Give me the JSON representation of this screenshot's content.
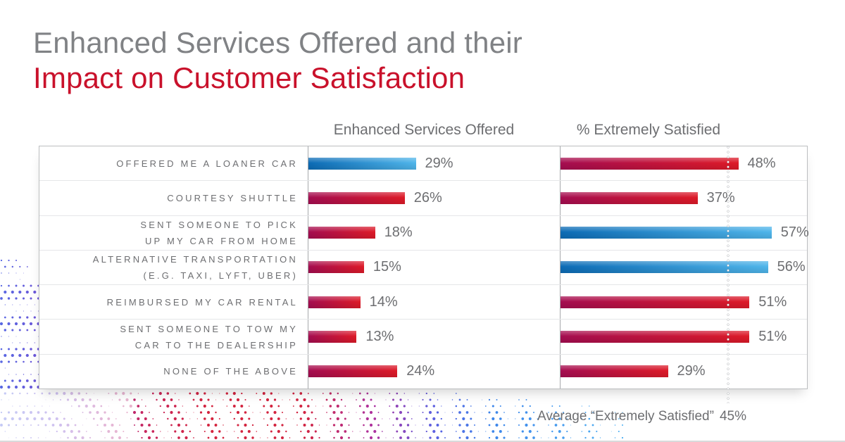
{
  "title": {
    "line1": "Enhanced Services Offered and their",
    "line2": "Impact on Customer Satisfaction"
  },
  "columns": {
    "services_header": "Enhanced Services Offered",
    "satisfied_header": "% Extremely Satisfied"
  },
  "footnote": {
    "label": "Average “Extremely Satisfied”",
    "value_display": "45%"
  },
  "chart_data": {
    "type": "bar",
    "orientation": "horizontal",
    "unit": "%",
    "title": "Enhanced Services Offered and their Impact on Customer Satisfaction",
    "categories": [
      "OFFERED ME A LOANER CAR",
      "COURTESY SHUTTLE",
      "SENT SOMEONE TO PICK UP MY CAR FROM HOME",
      "ALTERNATIVE TRANSPORTATION (E.G. TAXI, LYFT, UBER)",
      "REIMBURSED MY CAR RENTAL",
      "SENT SOMEONE TO TOW MY CAR TO THE DEALERSHIP",
      "NONE OF THE ABOVE"
    ],
    "series": [
      {
        "name": "Enhanced Services Offered",
        "values": [
          29,
          26,
          18,
          15,
          14,
          13,
          24
        ]
      },
      {
        "name": "% Extremely Satisfied",
        "values": [
          48,
          37,
          57,
          56,
          51,
          51,
          29
        ]
      }
    ],
    "average_line": {
      "series": "% Extremely Satisfied",
      "value": 45,
      "label": "Average “Extremely Satisfied” 45%"
    },
    "xlim": [
      0,
      66
    ],
    "grid": false,
    "legend": "column headers above each bar group",
    "palette": {
      "blue": {
        "start": "#0c6bb5",
        "end": "#4fb5ea"
      },
      "red": {
        "start": "#a50d50",
        "end": "#dd1a28"
      }
    },
    "rows": [
      {
        "label_lines": [
          "OFFERED ME A LOANER CAR"
        ],
        "services": {
          "value": 29,
          "display": "29%",
          "color": "blue"
        },
        "satisfied": {
          "value": 48,
          "display": "48%",
          "color": "red"
        }
      },
      {
        "label_lines": [
          "COURTESY SHUTTLE"
        ],
        "services": {
          "value": 26,
          "display": "26%",
          "color": "red"
        },
        "satisfied": {
          "value": 37,
          "display": "37%",
          "color": "red"
        }
      },
      {
        "label_lines": [
          "SENT SOMEONE TO PICK",
          "UP MY CAR FROM HOME"
        ],
        "services": {
          "value": 18,
          "display": "18%",
          "color": "red"
        },
        "satisfied": {
          "value": 57,
          "display": "57%",
          "color": "blue"
        }
      },
      {
        "label_lines": [
          "ALTERNATIVE TRANSPORTATION",
          "(E.G. TAXI, LYFT, UBER)"
        ],
        "services": {
          "value": 15,
          "display": "15%",
          "color": "red"
        },
        "satisfied": {
          "value": 56,
          "display": "56%",
          "color": "blue"
        }
      },
      {
        "label_lines": [
          "REIMBURSED MY CAR RENTAL"
        ],
        "services": {
          "value": 14,
          "display": "14%",
          "color": "red"
        },
        "satisfied": {
          "value": 51,
          "display": "51%",
          "color": "red"
        }
      },
      {
        "label_lines": [
          "SENT SOMEONE TO TOW MY",
          "CAR TO THE DEALERSHIP"
        ],
        "services": {
          "value": 13,
          "display": "13%",
          "color": "red"
        },
        "satisfied": {
          "value": 51,
          "display": "51%",
          "color": "red"
        }
      },
      {
        "label_lines": [
          "NONE OF THE ABOVE"
        ],
        "services": {
          "value": 24,
          "display": "24%",
          "color": "red"
        },
        "satisfied": {
          "value": 29,
          "display": "29%",
          "color": "red"
        }
      }
    ],
    "decoration_colors": [
      "#4a5ce0",
      "#6a3fd0",
      "#a91f85",
      "#c4124d",
      "#d0112e",
      "#a62097",
      "#4b55e0",
      "#2d7ce8",
      "#3fa9f2"
    ]
  }
}
